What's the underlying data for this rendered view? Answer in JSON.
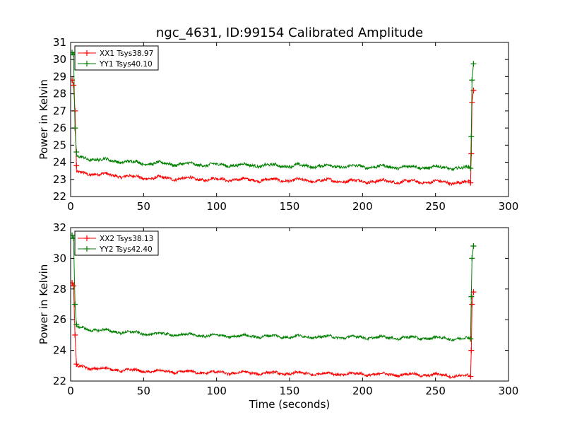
{
  "chart_data": [
    {
      "type": "line",
      "title": "ngc_4631, ID:99154 Calibrated Amplitude",
      "xlabel": "",
      "ylabel": "Power in Kelvin",
      "xlim": [
        0,
        300
      ],
      "ylim": [
        22,
        31
      ],
      "xticks": [
        "0",
        "50",
        "100",
        "150",
        "200",
        "250",
        "300"
      ],
      "yticks": [
        "22",
        "23",
        "24",
        "25",
        "26",
        "27",
        "28",
        "29",
        "30",
        "31"
      ],
      "legend_position": "upper-left",
      "series": [
        {
          "name": "XX1 Tsys38.97",
          "color": "#ff0000",
          "spike_start": [
            [
              1,
              28.8
            ],
            [
              2,
              28.5
            ],
            [
              3,
              27.0
            ],
            [
              4,
              23.8
            ]
          ],
          "baseline": [
            [
              4,
              23.4
            ],
            [
              20,
              23.3
            ],
            [
              50,
              23.1
            ],
            [
              100,
              23.0
            ],
            [
              150,
              22.95
            ],
            [
              200,
              22.9
            ],
            [
              250,
              22.85
            ],
            [
              274,
              22.8
            ]
          ],
          "spike_end": [
            [
              274,
              22.8
            ],
            [
              274.5,
              24.5
            ],
            [
              275,
              27.5
            ],
            [
              276,
              28.2
            ]
          ]
        },
        {
          "name": "YY1 Tsys40.10",
          "color": "#008000",
          "spike_start": [
            [
              1,
              30.4
            ],
            [
              2,
              30.3
            ],
            [
              3,
              26.0
            ],
            [
              4,
              24.6
            ]
          ],
          "baseline": [
            [
              4,
              24.3
            ],
            [
              20,
              24.15
            ],
            [
              50,
              23.95
            ],
            [
              100,
              23.85
            ],
            [
              150,
              23.8
            ],
            [
              200,
              23.75
            ],
            [
              250,
              23.7
            ],
            [
              274,
              23.65
            ]
          ],
          "spike_end": [
            [
              274,
              23.65
            ],
            [
              274.5,
              25.5
            ],
            [
              275,
              28.8
            ],
            [
              276,
              29.75
            ]
          ]
        }
      ]
    },
    {
      "type": "line",
      "title": "",
      "xlabel": "Time (seconds)",
      "ylabel": "Power in Kelvin",
      "xlim": [
        0,
        300
      ],
      "ylim": [
        22,
        32
      ],
      "xticks": [
        "0",
        "50",
        "100",
        "150",
        "200",
        "250",
        "300"
      ],
      "yticks": [
        "22",
        "24",
        "26",
        "28",
        "30",
        "32"
      ],
      "legend_position": "upper-left",
      "series": [
        {
          "name": "XX2 Tsys38.13",
          "color": "#ff0000",
          "spike_start": [
            [
              1,
              28.4
            ],
            [
              2,
              28.2
            ],
            [
              3,
              25.0
            ],
            [
              4,
              23.1
            ]
          ],
          "baseline": [
            [
              4,
              22.95
            ],
            [
              20,
              22.8
            ],
            [
              50,
              22.65
            ],
            [
              100,
              22.55
            ],
            [
              150,
              22.5
            ],
            [
              200,
              22.45
            ],
            [
              250,
              22.4
            ],
            [
              274,
              22.3
            ]
          ],
          "spike_end": [
            [
              274,
              22.3
            ],
            [
              274.5,
              24.0
            ],
            [
              275,
              27.0
            ],
            [
              276,
              27.8
            ]
          ]
        },
        {
          "name": "YY2 Tsys42.40",
          "color": "#008000",
          "spike_start": [
            [
              1,
              31.5
            ],
            [
              2,
              31.3
            ],
            [
              3,
              27.0
            ],
            [
              4,
              25.7
            ]
          ],
          "baseline": [
            [
              4,
              25.5
            ],
            [
              20,
              25.3
            ],
            [
              50,
              25.1
            ],
            [
              100,
              24.95
            ],
            [
              150,
              24.9
            ],
            [
              200,
              24.85
            ],
            [
              250,
              24.8
            ],
            [
              274,
              24.75
            ]
          ],
          "spike_end": [
            [
              274,
              24.75
            ],
            [
              274.5,
              27.5
            ],
            [
              275,
              30.0
            ],
            [
              276,
              30.8
            ]
          ]
        }
      ]
    }
  ]
}
